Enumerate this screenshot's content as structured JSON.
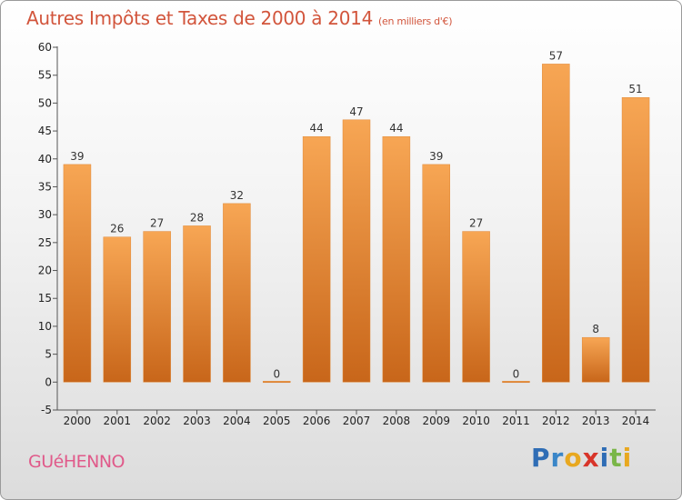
{
  "chart_data": {
    "type": "bar",
    "title": "Autres Impôts et Taxes de 2000 à 2014",
    "subtitle": "(en milliers d'€)",
    "categories": [
      "2000",
      "2001",
      "2002",
      "2003",
      "2004",
      "2005",
      "2006",
      "2007",
      "2008",
      "2009",
      "2010",
      "2011",
      "2012",
      "2013",
      "2014"
    ],
    "values": [
      39,
      26,
      27,
      28,
      32,
      0,
      44,
      47,
      44,
      39,
      27,
      0,
      57,
      8,
      51
    ],
    "ylim": [
      -5,
      60
    ],
    "yticks": [
      -5,
      0,
      5,
      10,
      15,
      20,
      25,
      30,
      35,
      40,
      45,
      50,
      55,
      60
    ],
    "xlabel": "",
    "ylabel": "",
    "grid": false,
    "bar_color": "#f0923a"
  },
  "footer": {
    "town": "GUéHENNO",
    "brand_letters": [
      {
        "char": "P",
        "color": "#2f6db5"
      },
      {
        "char": "r",
        "color": "#3a86c8"
      },
      {
        "char": "o",
        "color": "#e8a820"
      },
      {
        "char": "x",
        "color": "#d8352a"
      },
      {
        "char": "i",
        "color": "#2f6db5"
      },
      {
        "char": "t",
        "color": "#7ab648"
      },
      {
        "char": "i",
        "color": "#e8a820"
      }
    ]
  }
}
